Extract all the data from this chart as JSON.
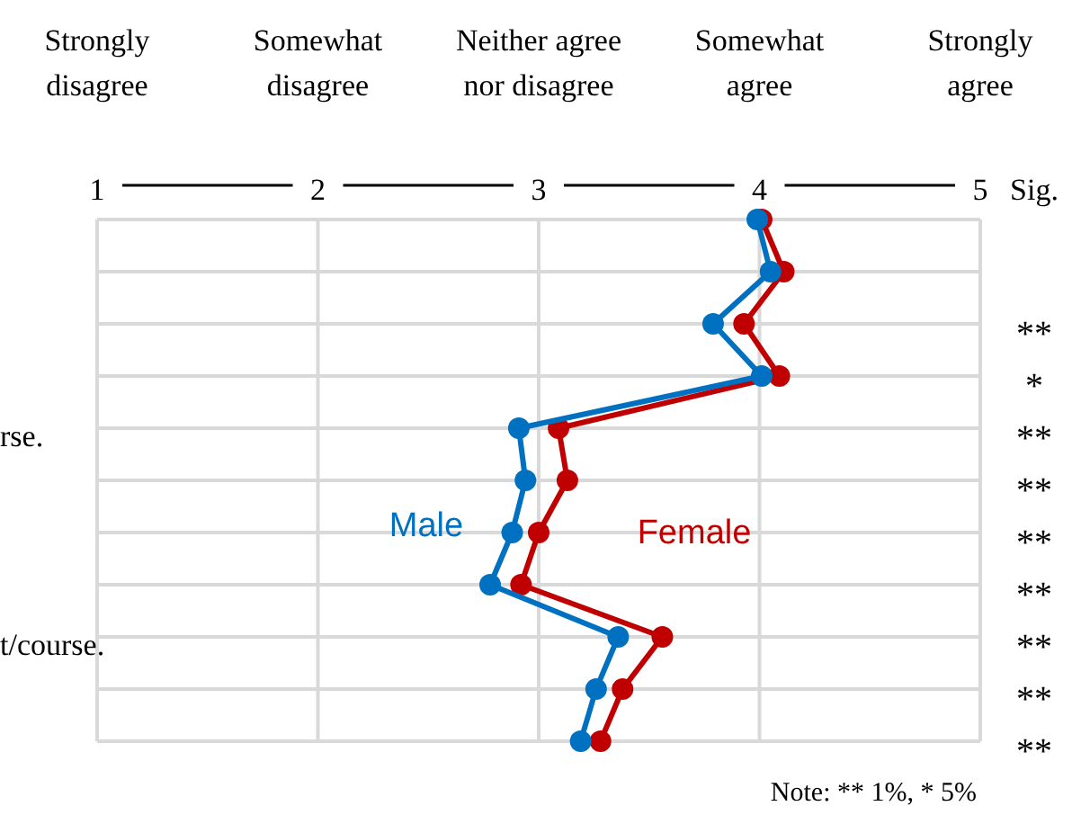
{
  "chart_data": {
    "type": "line",
    "orientation": "horizontal",
    "categories": [
      null,
      null,
      null,
      null,
      "rse.",
      null,
      null,
      null,
      "t/course.",
      null,
      null
    ],
    "y2_categories": [
      null,
      null,
      "**",
      "*",
      "**",
      "**",
      "**",
      "**",
      "**",
      "**",
      "**"
    ],
    "y2label": "Sig.",
    "series": [
      {
        "name": "Male",
        "color": "#0070c0",
        "values": [
          3.99,
          4.05,
          3.79,
          4.01,
          2.91,
          2.94,
          2.88,
          2.78,
          3.36,
          3.26,
          3.19
        ]
      },
      {
        "name": "Female",
        "color": "#c00000",
        "values": [
          4.01,
          4.11,
          3.93,
          4.09,
          3.09,
          3.13,
          3.0,
          2.92,
          3.56,
          3.38,
          3.28
        ]
      }
    ],
    "xlim": [
      1,
      5
    ],
    "xticks": [
      1,
      2,
      3,
      4,
      5
    ],
    "grid": true,
    "marker": "circle",
    "line_style": "solid",
    "annotations": [
      "Strongly disagree",
      "Somewhat disagree",
      "Neither agree nor disagree",
      "Somewhat agree",
      "Strongly agree",
      "Note: ** 1%, * 5%"
    ]
  }
}
